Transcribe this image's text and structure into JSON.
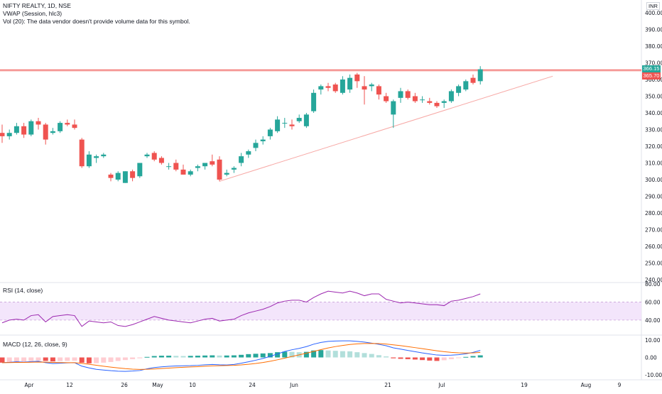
{
  "legend": {
    "symbol_line": "NIFTY REALTY, 1D, NSE",
    "vwap_line": "VWAP (Session, hlc3)",
    "vol_line": "Vol (20): The data vendor doesn't provide volume data for this symbol."
  },
  "currency_badge": "INR",
  "price_axis": {
    "ticks": [
      "400.00",
      "390.00",
      "380.00",
      "370.00",
      "360.00",
      "350.00",
      "340.00",
      "330.00",
      "320.00",
      "310.00",
      "300.00",
      "290.00",
      "280.00",
      "270.00",
      "260.00",
      "250.00",
      "240.00"
    ],
    "last_price_tag": "366.15",
    "line_price_tag": "365.70",
    "colors": {
      "up": "#26a69a",
      "down": "#ef5350",
      "line": "#ef5350"
    }
  },
  "rsi_pane": {
    "label": "RSI (14, close)",
    "ticks": [
      "80.00",
      "60.00",
      "40.00"
    ],
    "color": "#9c27b0"
  },
  "macd_pane": {
    "label": "MACD (12, 26, close, 9)",
    "ticks": [
      "10.00",
      "0.00",
      "-10.00"
    ],
    "macd_color": "#2962ff",
    "signal_color": "#ff6d00"
  },
  "time_axis": {
    "labels": [
      "Apr",
      "12",
      "26",
      "May",
      "10",
      "24",
      "Jun",
      "21",
      "Jul",
      "19",
      "Aug",
      "9"
    ]
  },
  "chart_data": {
    "type": "candlestick",
    "y_range": [
      236,
      404
    ],
    "candles": [
      {
        "o": 328,
        "h": 333,
        "l": 322,
        "c": 326
      },
      {
        "o": 326,
        "h": 330,
        "l": 324,
        "c": 328
      },
      {
        "o": 328,
        "h": 334,
        "l": 327,
        "c": 332
      },
      {
        "o": 332,
        "h": 334,
        "l": 325,
        "c": 327
      },
      {
        "o": 327,
        "h": 336,
        "l": 326,
        "c": 335
      },
      {
        "o": 335,
        "h": 337,
        "l": 330,
        "c": 333
      },
      {
        "o": 333,
        "h": 334,
        "l": 321,
        "c": 324
      },
      {
        "o": 328,
        "h": 331,
        "l": 327,
        "c": 329
      },
      {
        "o": 329,
        "h": 335,
        "l": 328,
        "c": 334
      },
      {
        "o": 334,
        "h": 336,
        "l": 332,
        "c": 333
      },
      {
        "o": 333,
        "h": 336,
        "l": 330,
        "c": 331
      },
      {
        "o": 324,
        "h": 325,
        "l": 307,
        "c": 308
      },
      {
        "o": 308,
        "h": 317,
        "l": 307,
        "c": 315
      },
      {
        "o": 313,
        "h": 315,
        "l": 310,
        "c": 314
      },
      {
        "o": 314,
        "h": 316,
        "l": 313,
        "c": 315
      },
      {
        "o": 303,
        "h": 304,
        "l": 299,
        "c": 301
      },
      {
        "o": 300,
        "h": 305,
        "l": 299,
        "c": 304
      },
      {
        "o": 298,
        "h": 305,
        "l": 298,
        "c": 305
      },
      {
        "o": 305,
        "h": 306,
        "l": 299,
        "c": 301
      },
      {
        "o": 302,
        "h": 310,
        "l": 301,
        "c": 310
      },
      {
        "o": 314,
        "h": 316,
        "l": 313,
        "c": 315
      },
      {
        "o": 316,
        "h": 317,
        "l": 311,
        "c": 312
      },
      {
        "o": 313,
        "h": 314,
        "l": 309,
        "c": 310
      },
      {
        "o": 308,
        "h": 310,
        "l": 306,
        "c": 308
      },
      {
        "o": 310,
        "h": 312,
        "l": 305,
        "c": 306
      },
      {
        "o": 306,
        "h": 309,
        "l": 303,
        "c": 303
      },
      {
        "o": 303,
        "h": 306,
        "l": 302,
        "c": 305
      },
      {
        "o": 307,
        "h": 309,
        "l": 305,
        "c": 308
      },
      {
        "o": 308,
        "h": 310,
        "l": 306,
        "c": 310
      },
      {
        "o": 311,
        "h": 315,
        "l": 308,
        "c": 309
      },
      {
        "o": 312,
        "h": 314,
        "l": 299,
        "c": 300
      },
      {
        "o": 303,
        "h": 306,
        "l": 302,
        "c": 304
      },
      {
        "o": 306,
        "h": 308,
        "l": 304,
        "c": 307
      },
      {
        "o": 310,
        "h": 316,
        "l": 308,
        "c": 314
      },
      {
        "o": 315,
        "h": 318,
        "l": 313,
        "c": 317
      },
      {
        "o": 319,
        "h": 324,
        "l": 317,
        "c": 322
      },
      {
        "o": 323,
        "h": 326,
        "l": 321,
        "c": 324
      },
      {
        "o": 326,
        "h": 331,
        "l": 324,
        "c": 330
      },
      {
        "o": 329,
        "h": 338,
        "l": 328,
        "c": 336
      },
      {
        "o": 334,
        "h": 337,
        "l": 331,
        "c": 334
      },
      {
        "o": 333,
        "h": 336,
        "l": 330,
        "c": 332
      },
      {
        "o": 335,
        "h": 339,
        "l": 334,
        "c": 337
      },
      {
        "o": 332,
        "h": 340,
        "l": 331,
        "c": 339
      },
      {
        "o": 341,
        "h": 354,
        "l": 340,
        "c": 352
      },
      {
        "o": 354,
        "h": 357,
        "l": 351,
        "c": 356
      },
      {
        "o": 356,
        "h": 358,
        "l": 353,
        "c": 355
      },
      {
        "o": 357,
        "h": 358,
        "l": 352,
        "c": 353
      },
      {
        "o": 352,
        "h": 362,
        "l": 351,
        "c": 360
      },
      {
        "o": 354,
        "h": 363,
        "l": 352,
        "c": 361
      },
      {
        "o": 363,
        "h": 364,
        "l": 355,
        "c": 359
      },
      {
        "o": 356,
        "h": 362,
        "l": 345,
        "c": 354
      },
      {
        "o": 356,
        "h": 358,
        "l": 353,
        "c": 357
      },
      {
        "o": 356,
        "h": 357,
        "l": 348,
        "c": 351
      },
      {
        "o": 350,
        "h": 352,
        "l": 346,
        "c": 347
      },
      {
        "o": 339,
        "h": 348,
        "l": 331,
        "c": 347
      },
      {
        "o": 349,
        "h": 355,
        "l": 346,
        "c": 353
      },
      {
        "o": 353,
        "h": 354,
        "l": 348,
        "c": 349
      },
      {
        "o": 350,
        "h": 352,
        "l": 346,
        "c": 347
      },
      {
        "o": 348,
        "h": 350,
        "l": 346,
        "c": 348
      },
      {
        "o": 347,
        "h": 349,
        "l": 345,
        "c": 346
      },
      {
        "o": 346,
        "h": 347,
        "l": 343,
        "c": 344
      },
      {
        "o": 346,
        "h": 348,
        "l": 343,
        "c": 347
      },
      {
        "o": 347,
        "h": 354,
        "l": 346,
        "c": 353
      },
      {
        "o": 352,
        "h": 357,
        "l": 350,
        "c": 356
      },
      {
        "o": 354,
        "h": 360,
        "l": 353,
        "c": 359
      },
      {
        "o": 361,
        "h": 363,
        "l": 357,
        "c": 358
      },
      {
        "o": 359,
        "h": 368,
        "l": 357,
        "c": 366.15
      }
    ],
    "horizontal_line": 365.7,
    "trend_line": [
      [
        299,
        0
      ],
      [
        362,
        1
      ]
    ],
    "rsi": {
      "band": [
        40,
        60
      ],
      "values": [
        37,
        40,
        41,
        40,
        45,
        46,
        38,
        44,
        45,
        46,
        45,
        33,
        39,
        38,
        37,
        38,
        34,
        33,
        35,
        38,
        41,
        44,
        42,
        40,
        39,
        38,
        37,
        39,
        41,
        42,
        39,
        40,
        41,
        45,
        48,
        50,
        52,
        55,
        59,
        61,
        62,
        62,
        60,
        65,
        69,
        72,
        71,
        70,
        72,
        70,
        67,
        69,
        69,
        63,
        61,
        59,
        60,
        59,
        58,
        57,
        57,
        56,
        61,
        62,
        64,
        66,
        69
      ]
    },
    "macd": {
      "histogram": [
        -3,
        -2.8,
        -2.5,
        -2.3,
        -2,
        -1.8,
        -2,
        -2.3,
        -2.1,
        -2,
        -1.9,
        -3,
        -3.4,
        -3.3,
        -3,
        -2.6,
        -2,
        -1.5,
        -1,
        -0.5,
        0.3,
        0.8,
        1,
        1,
        0.9,
        0.8,
        0.9,
        1,
        1.1,
        1.2,
        1.1,
        1.1,
        1.2,
        1.5,
        1.9,
        2.1,
        2.3,
        2.5,
        3,
        3.3,
        3.2,
        3,
        3.2,
        4,
        4.2,
        4,
        3.8,
        3.6,
        3.5,
        3,
        2.5,
        2,
        1.3,
        0.6,
        -0.5,
        -0.8,
        -1,
        -1.2,
        -1.5,
        -1.8,
        -2,
        -1.6,
        -1,
        -0.3,
        0.3,
        0.8,
        1.2
      ],
      "macd_line": [
        -3,
        -2.8,
        -2.5,
        -2.7,
        -2.4,
        -2.2,
        -3,
        -3.5,
        -3.3,
        -3.1,
        -3,
        -5,
        -6,
        -6.8,
        -7.2,
        -7.6,
        -7.9,
        -8,
        -7.8,
        -7.5,
        -6.5,
        -5.8,
        -5.4,
        -5.1,
        -4.9,
        -4.8,
        -4.7,
        -4.5,
        -4.2,
        -4,
        -4.2,
        -4.3,
        -4,
        -3.3,
        -2.5,
        -1.6,
        -0.6,
        0.6,
        2,
        3.4,
        4.4,
        5.2,
        6.2,
        7.6,
        8.6,
        9.2,
        9.4,
        9.5,
        9.5,
        9.2,
        8.8,
        8.2,
        7.5,
        6.7,
        5.5,
        4.8,
        4,
        3.3,
        2.6,
        2,
        1.4,
        1.2,
        1.3,
        1.6,
        2.1,
        2.9,
        4
      ]
    }
  }
}
